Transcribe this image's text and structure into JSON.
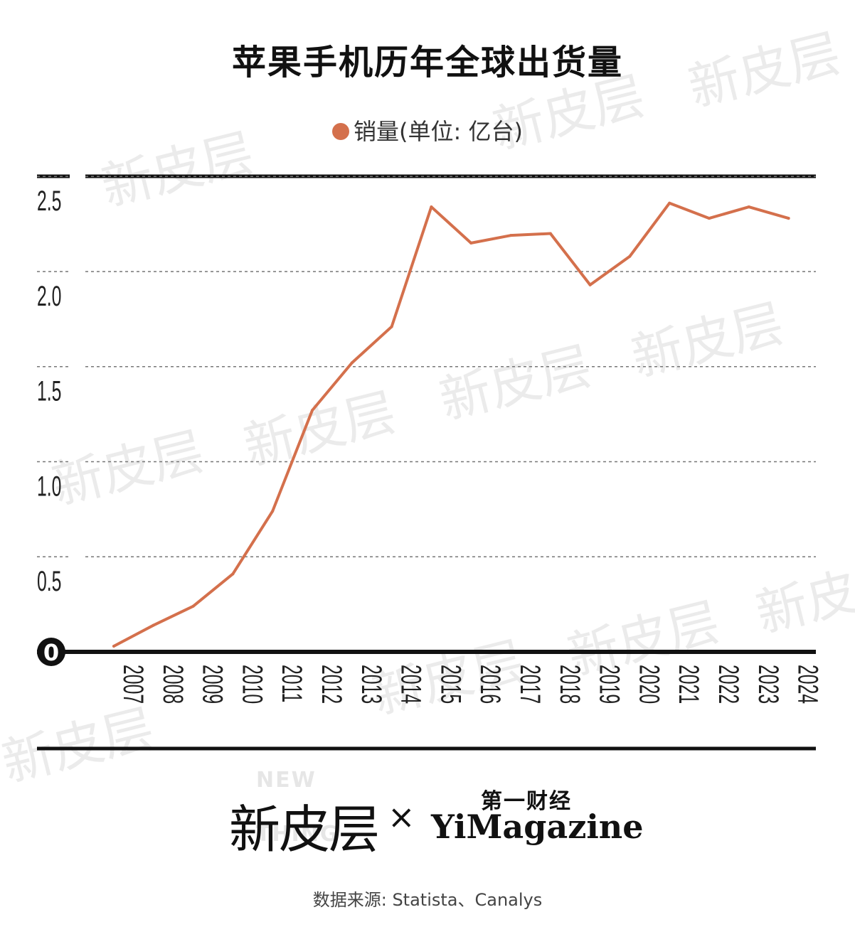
{
  "chart_data": {
    "type": "line",
    "title": "苹果手机历年全球出货量",
    "x": [
      "2007",
      "2008",
      "2009",
      "2010",
      "2011",
      "2012",
      "2013",
      "2014",
      "2015",
      "2016",
      "2017",
      "2018",
      "2019",
      "2020",
      "2021",
      "2022",
      "2023",
      "2024"
    ],
    "series": [
      {
        "name": "销量(单位: 亿台)",
        "color": "#d4704c",
        "values": [
          0.03,
          0.14,
          0.24,
          0.41,
          0.74,
          1.27,
          1.52,
          1.71,
          2.34,
          2.15,
          2.19,
          2.2,
          1.93,
          2.08,
          2.36,
          2.28,
          2.34,
          2.28
        ]
      }
    ],
    "yticks": [
      "0",
      "0.5",
      "1.0",
      "1.5",
      "2.0",
      "2.5"
    ],
    "ytick_values": [
      0,
      0.5,
      1.0,
      1.5,
      2.0,
      2.5
    ],
    "ylim": [
      0,
      2.5
    ],
    "grid": "dashed horizontal",
    "legend": "top-center"
  },
  "legend_label": "销量(单位: 亿台)",
  "watermark_text": "新皮层",
  "footer": {
    "logo_left": "新皮层",
    "logo_left_ghost_1": "NEW",
    "logo_left_ghost_2": "THING",
    "separator": "×",
    "logo_right_cn": "第一财经",
    "logo_right_en": "YiMagazine"
  },
  "source": "数据来源: Statista、Canalys"
}
